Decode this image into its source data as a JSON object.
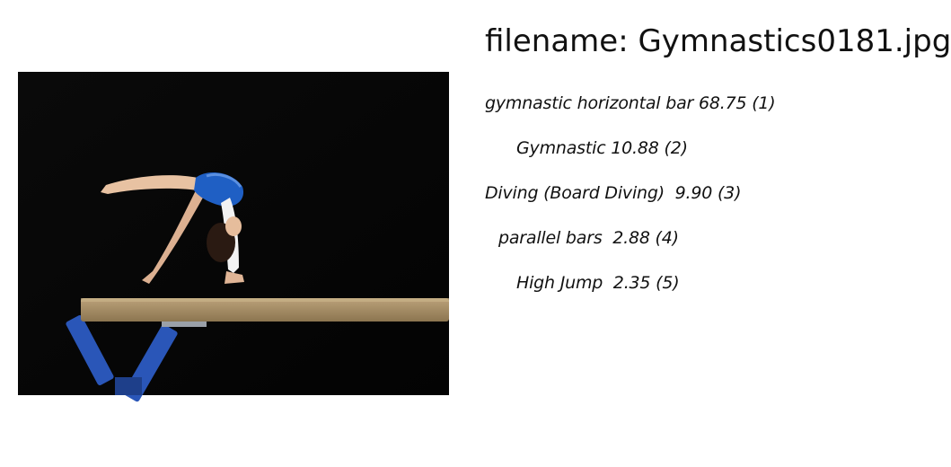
{
  "header": {
    "title": "filename: Gymnastics0181.jpg"
  },
  "image": {
    "subject": "gymnast performing backbend on balance beam",
    "beam_color": "#a08a63",
    "legs_color": "#2a56b8",
    "leotard_color": "#1f5fc4",
    "background_color": "#050505"
  },
  "predictions": [
    {
      "text": "gymnastic horizontal bar 68.75 (1)"
    },
    {
      "text": "Gymnastic 10.88 (2)"
    },
    {
      "text": "Diving (Board Diving)  9.90 (3)"
    },
    {
      "text": "parallel bars  2.88 (4)"
    },
    {
      "text": "High Jump  2.35 (5)"
    }
  ]
}
